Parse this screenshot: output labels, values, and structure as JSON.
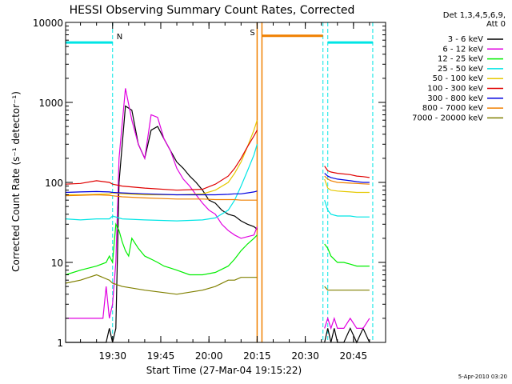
{
  "chart_data": {
    "type": "line",
    "title": "HESSI Observing Summary Count Rates, Corrected",
    "xlabel": "Start Time (27-Mar-04 19:15:22)",
    "ylabel": "Corrected Count Rate (s⁻¹ detector⁻¹)",
    "y_scale": "log",
    "ylim": [
      1,
      10000
    ],
    "xlim": [
      "19:15:22",
      "20:55:00"
    ],
    "x_ticks": [
      "19:30",
      "19:45",
      "20:00",
      "20:15",
      "20:30",
      "20:45"
    ],
    "y_ticks": [
      "1",
      "10",
      "100",
      "1000",
      "10000"
    ],
    "legend": {
      "position": "top-right",
      "header": [
        "Det 1,3,4,5,6,9,",
        "Att 0"
      ]
    },
    "annotations": [
      {
        "label": "N",
        "color": "#00e5e5"
      },
      {
        "label": "S",
        "color": "#f08000"
      }
    ],
    "stamp": "5-Apr-2010 03:20",
    "series": [
      {
        "name": "3 - 6 keV",
        "color": "#000000",
        "x": [
          "19:15:22",
          "19:27:00",
          "19:28:00",
          "19:29:00",
          "19:30:00",
          "19:31:00",
          "19:32:00",
          "19:34:00",
          "19:36:00",
          "19:38:00",
          "19:40:00",
          "19:42:00",
          "19:44:00",
          "19:46:00",
          "19:48:00",
          "19:50:00",
          "19:52:00",
          "19:54:00",
          "19:56:00",
          "19:58:00",
          "20:00:00",
          "20:02:00",
          "20:04:00",
          "20:06:00",
          "20:08:00",
          "20:10:00",
          "20:12:00",
          "20:14:00",
          "20:15:00",
          "20:30:00",
          "20:36:00",
          "20:37:00",
          "20:38:00",
          "20:39:00",
          "20:40:00",
          "20:42:00",
          "20:44:00",
          "20:46:00",
          "20:48:00",
          "20:50:00"
        ],
        "y": [
          1,
          1,
          1,
          1.5,
          1,
          1.5,
          100,
          900,
          800,
          300,
          200,
          450,
          500,
          350,
          250,
          180,
          150,
          120,
          100,
          80,
          60,
          55,
          45,
          40,
          38,
          33,
          30,
          28,
          26,
          null,
          1,
          1.5,
          1,
          1.5,
          1,
          1,
          1.5,
          1,
          1.5,
          1
        ]
      },
      {
        "name": "6 - 12 keV",
        "color": "#e000e0",
        "x": [
          "19:15:22",
          "19:27:00",
          "19:28:00",
          "19:29:00",
          "19:30:00",
          "19:31:00",
          "19:32:00",
          "19:34:00",
          "19:36:00",
          "19:38:00",
          "19:40:00",
          "19:42:00",
          "19:44:00",
          "19:46:00",
          "19:48:00",
          "19:50:00",
          "19:52:00",
          "19:54:00",
          "19:56:00",
          "19:58:00",
          "20:00:00",
          "20:02:00",
          "20:04:00",
          "20:06:00",
          "20:08:00",
          "20:10:00",
          "20:12:00",
          "20:14:00",
          "20:15:00",
          "20:30:00",
          "20:36:00",
          "20:37:00",
          "20:38:00",
          "20:39:00",
          "20:40:00",
          "20:42:00",
          "20:44:00",
          "20:46:00",
          "20:48:00",
          "20:50:00"
        ],
        "y": [
          2,
          2,
          5,
          2,
          3,
          10,
          200,
          1500,
          600,
          300,
          200,
          700,
          650,
          350,
          250,
          150,
          110,
          90,
          70,
          55,
          45,
          40,
          30,
          25,
          22,
          20,
          21,
          22,
          28,
          null,
          1.5,
          2,
          1.5,
          2,
          1.5,
          1.5,
          2,
          1.5,
          1.5,
          2
        ]
      },
      {
        "name": "12 - 25 keV",
        "color": "#00ee00",
        "x": [
          "19:15:22",
          "19:20:00",
          "19:25:00",
          "19:28:00",
          "19:29:00",
          "19:30:00",
          "19:31:00",
          "19:32:00",
          "19:33:00",
          "19:34:00",
          "19:35:00",
          "19:36:00",
          "19:38:00",
          "19:40:00",
          "19:42:00",
          "19:44:00",
          "19:46:00",
          "19:48:00",
          "19:50:00",
          "19:54:00",
          "19:58:00",
          "20:02:00",
          "20:06:00",
          "20:08:00",
          "20:10:00",
          "20:12:00",
          "20:14:00",
          "20:15:00",
          "20:30:00",
          "20:36:00",
          "20:37:00",
          "20:38:00",
          "20:40:00",
          "20:42:00",
          "20:44:00",
          "20:46:00",
          "20:48:00",
          "20:50:00"
        ],
        "y": [
          7,
          8,
          9,
          10,
          12,
          10,
          30,
          25,
          18,
          14,
          12,
          20,
          15,
          12,
          11,
          10,
          9,
          8.5,
          8,
          7,
          7,
          7.5,
          9,
          11,
          14,
          17,
          20,
          22,
          null,
          17,
          15,
          12,
          10,
          10,
          9.5,
          9,
          9,
          9
        ]
      },
      {
        "name": "25 - 50 keV",
        "color": "#00e5e5",
        "x": [
          "19:15:22",
          "19:20:00",
          "19:25:00",
          "19:29:00",
          "19:30:00",
          "19:33:00",
          "19:40:00",
          "19:50:00",
          "19:58:00",
          "20:02:00",
          "20:06:00",
          "20:08:00",
          "20:10:00",
          "20:12:00",
          "20:14:00",
          "20:15:00",
          "20:30:00",
          "20:36:00",
          "20:37:00",
          "20:38:00",
          "20:40:00",
          "20:44:00",
          "20:46:00",
          "20:48:00",
          "20:50:00"
        ],
        "y": [
          35,
          34,
          35,
          35,
          38,
          35,
          34,
          33,
          34,
          36,
          45,
          60,
          90,
          140,
          220,
          300,
          null,
          60,
          45,
          40,
          38,
          38,
          37,
          37,
          37
        ]
      },
      {
        "name": "50 - 100 keV",
        "color": "#e5c800",
        "x": [
          "19:15:22",
          "19:20:00",
          "19:25:00",
          "19:29:00",
          "19:30:00",
          "19:33:00",
          "19:40:00",
          "19:50:00",
          "19:58:00",
          "20:02:00",
          "20:06:00",
          "20:08:00",
          "20:10:00",
          "20:12:00",
          "20:14:00",
          "20:15:00",
          "20:30:00",
          "20:36:00",
          "20:37:00",
          "20:38:00",
          "20:40:00",
          "20:44:00",
          "20:46:00",
          "20:48:00",
          "20:50:00"
        ],
        "y": [
          70,
          70,
          71,
          72,
          74,
          72,
          70,
          70,
          72,
          80,
          100,
          130,
          180,
          280,
          450,
          600,
          null,
          110,
          85,
          80,
          78,
          76,
          75,
          75,
          75
        ]
      },
      {
        "name": "100 - 300 keV",
        "color": "#e00000",
        "x": [
          "19:15:22",
          "19:20:00",
          "19:25:00",
          "19:29:00",
          "19:30:00",
          "19:33:00",
          "19:40:00",
          "19:50:00",
          "19:58:00",
          "20:02:00",
          "20:06:00",
          "20:08:00",
          "20:10:00",
          "20:12:00",
          "20:14:00",
          "20:15:00",
          "20:30:00",
          "20:36:00",
          "20:37:00",
          "20:38:00",
          "20:40:00",
          "20:44:00",
          "20:46:00",
          "20:48:00",
          "20:50:00"
        ],
        "y": [
          95,
          97,
          105,
          100,
          95,
          90,
          85,
          80,
          82,
          95,
          120,
          150,
          200,
          280,
          380,
          450,
          null,
          160,
          140,
          135,
          130,
          125,
          120,
          118,
          115
        ]
      },
      {
        "name": "300 - 800 keV",
        "color": "#0000e0",
        "x": [
          "19:15:22",
          "19:20:00",
          "19:25:00",
          "19:29:00",
          "19:30:00",
          "19:33:00",
          "19:40:00",
          "19:50:00",
          "19:58:00",
          "20:02:00",
          "20:06:00",
          "20:08:00",
          "20:10:00",
          "20:12:00",
          "20:14:00",
          "20:15:00",
          "20:30:00",
          "20:36:00",
          "20:37:00",
          "20:38:00",
          "20:40:00",
          "20:44:00",
          "20:46:00",
          "20:48:00",
          "20:50:00"
        ],
        "y": [
          75,
          76,
          77,
          76,
          75,
          74,
          72,
          70,
          70,
          70,
          71,
          72,
          72,
          74,
          76,
          78,
          null,
          130,
          120,
          115,
          110,
          105,
          102,
          100,
          100
        ]
      },
      {
        "name": "800 - 7000 keV",
        "color": "#f08000",
        "x": [
          "19:15:22",
          "19:20:00",
          "19:25:00",
          "19:29:00",
          "19:30:00",
          "19:33:00",
          "19:40:00",
          "19:50:00",
          "19:58:00",
          "20:02:00",
          "20:06:00",
          "20:08:00",
          "20:10:00",
          "20:12:00",
          "20:14:00",
          "20:15:00",
          "20:30:00",
          "20:36:00",
          "20:37:00",
          "20:38:00",
          "20:40:00",
          "20:44:00",
          "20:46:00",
          "20:48:00",
          "20:50:00"
        ],
        "y": [
          68,
          69,
          70,
          69,
          68,
          66,
          64,
          62,
          62,
          61,
          61,
          61,
          60,
          60,
          60,
          60,
          null,
          120,
          110,
          105,
          100,
          98,
          97,
          96,
          95
        ]
      },
      {
        "name": "7000 - 20000 keV",
        "color": "#808000",
        "x": [
          "19:15:22",
          "19:20:00",
          "19:25:00",
          "19:29:00",
          "19:30:00",
          "19:33:00",
          "19:40:00",
          "19:50:00",
          "19:58:00",
          "20:02:00",
          "20:06:00",
          "20:08:00",
          "20:10:00",
          "20:12:00",
          "20:14:00",
          "20:15:00",
          "20:30:00",
          "20:36:00",
          "20:37:00",
          "20:38:00",
          "20:40:00",
          "20:44:00",
          "20:46:00",
          "20:48:00",
          "20:50:00"
        ],
        "y": [
          5.5,
          6,
          7,
          6,
          5.5,
          5,
          4.5,
          4,
          4.5,
          5,
          6,
          6,
          6.5,
          6.5,
          6.5,
          6.5,
          null,
          5,
          4.5,
          4.5,
          4.5,
          4.5,
          4.5,
          4.5,
          4.5
        ]
      }
    ]
  }
}
